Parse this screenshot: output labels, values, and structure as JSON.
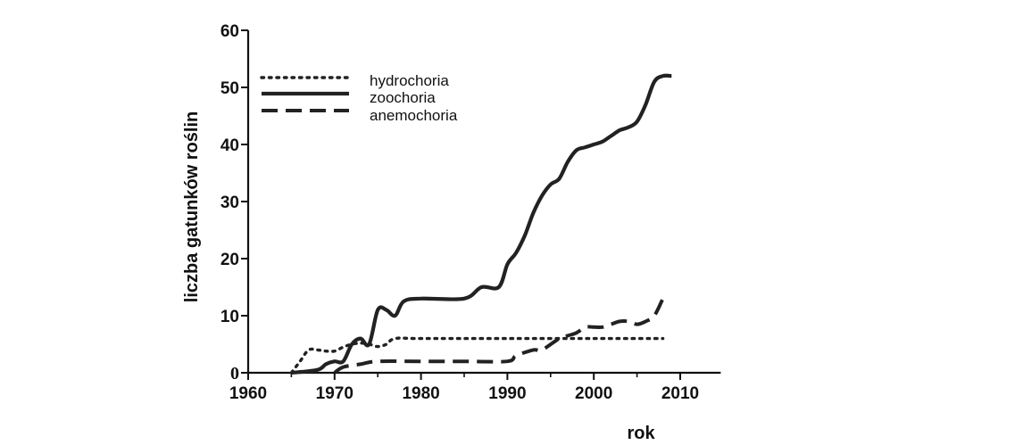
{
  "chart_data": {
    "type": "line",
    "title": "",
    "xlabel": "rok",
    "ylabel": "liczba gatunków roślin",
    "xlim": [
      1960,
      2015
    ],
    "ylim": [
      0,
      60
    ],
    "x_ticks": [
      1960,
      1970,
      1980,
      1990,
      2000,
      2010
    ],
    "y_ticks": [
      0,
      10,
      20,
      30,
      40,
      50,
      60
    ],
    "legend_position": "top-left",
    "grid": false,
    "series": [
      {
        "name": "hydrochoria",
        "style": "dotted",
        "color": "#222222",
        "points": [
          [
            1965,
            0
          ],
          [
            1966,
            2
          ],
          [
            1967,
            4
          ],
          [
            1968,
            4
          ],
          [
            1969,
            3.8
          ],
          [
            1970,
            3.8
          ],
          [
            1971,
            4.5
          ],
          [
            1972,
            5
          ],
          [
            1973,
            5.2
          ],
          [
            1974,
            5
          ],
          [
            1975,
            4.6
          ],
          [
            1976,
            5
          ],
          [
            1977,
            6
          ],
          [
            1980,
            6
          ],
          [
            1990,
            6
          ],
          [
            2000,
            6
          ],
          [
            2008,
            6
          ]
        ]
      },
      {
        "name": "zoochoria",
        "style": "solid",
        "color": "#222222",
        "points": [
          [
            1965,
            0
          ],
          [
            1968,
            0.5
          ],
          [
            1969,
            1.5
          ],
          [
            1970,
            2
          ],
          [
            1971,
            2
          ],
          [
            1972,
            5
          ],
          [
            1973,
            6
          ],
          [
            1974,
            5
          ],
          [
            1975,
            11
          ],
          [
            1976,
            11
          ],
          [
            1977,
            10
          ],
          [
            1978,
            12.5
          ],
          [
            1980,
            13
          ],
          [
            1985,
            13
          ],
          [
            1987,
            15
          ],
          [
            1989,
            15
          ],
          [
            1990,
            19
          ],
          [
            1991,
            21
          ],
          [
            1992,
            24
          ],
          [
            1993,
            28
          ],
          [
            1994,
            31
          ],
          [
            1995,
            33
          ],
          [
            1996,
            34
          ],
          [
            1997,
            37
          ],
          [
            1998,
            39
          ],
          [
            1999,
            39.5
          ],
          [
            2000,
            40
          ],
          [
            2001,
            40.5
          ],
          [
            2002,
            41.5
          ],
          [
            2003,
            42.5
          ],
          [
            2004,
            43
          ],
          [
            2005,
            44
          ],
          [
            2006,
            47
          ],
          [
            2007,
            51
          ],
          [
            2008,
            52
          ],
          [
            2009,
            52
          ]
        ]
      },
      {
        "name": "anemochoria",
        "style": "dashed",
        "color": "#222222",
        "points": [
          [
            1970,
            0
          ],
          [
            1971,
            1
          ],
          [
            1973,
            1.5
          ],
          [
            1975,
            2
          ],
          [
            1980,
            2
          ],
          [
            1985,
            2
          ],
          [
            1990,
            2
          ],
          [
            1991,
            3
          ],
          [
            1993,
            4
          ],
          [
            1994,
            4
          ],
          [
            1996,
            6
          ],
          [
            1997,
            6.5
          ],
          [
            1998,
            7
          ],
          [
            1999,
            8
          ],
          [
            2000,
            8
          ],
          [
            2001,
            8
          ],
          [
            2002,
            8.5
          ],
          [
            2003,
            9
          ],
          [
            2004,
            9
          ],
          [
            2005,
            8.5
          ],
          [
            2006,
            9
          ],
          [
            2007,
            10
          ],
          [
            2008,
            13
          ]
        ]
      }
    ]
  }
}
